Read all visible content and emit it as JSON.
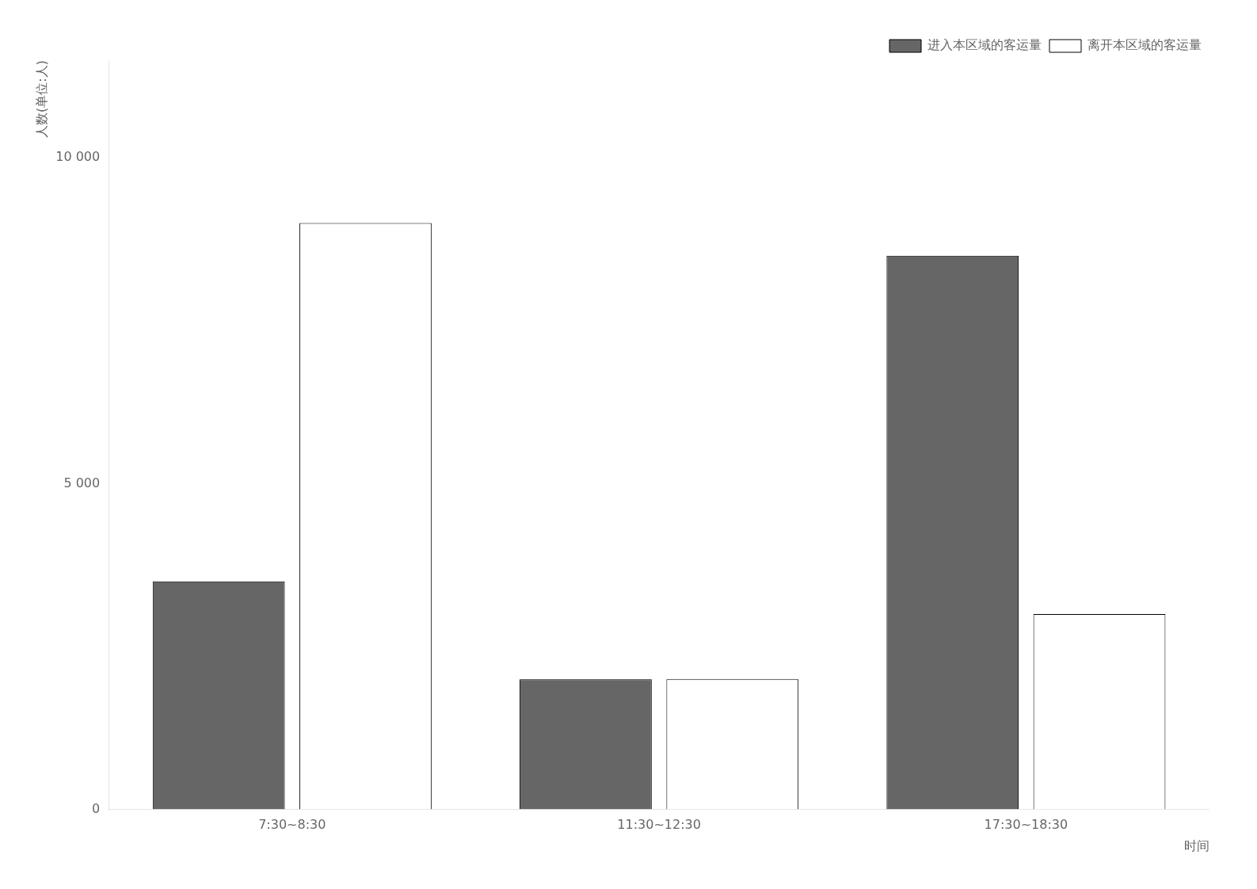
{
  "chart_data": {
    "type": "bar",
    "xlabel": "时间",
    "ylabel": "人数(单位:人)",
    "categories": [
      "7:30~8:30",
      "11:30~12:30",
      "17:30~18:30"
    ],
    "series": [
      {
        "name": "进入本区域的客运量",
        "color": "#666666",
        "values": [
          3500,
          2000,
          8500
        ]
      },
      {
        "name": "离开本区域的客运量",
        "color": "#ffffff",
        "values": [
          9000,
          2000,
          3000
        ]
      }
    ],
    "ylim": [
      0,
      11500
    ],
    "yticks": [
      0,
      {
        "value": 5000,
        "label": "5 000"
      },
      {
        "value": 10000,
        "label": "10 000"
      }
    ],
    "grid": false,
    "legend": "upper right"
  }
}
